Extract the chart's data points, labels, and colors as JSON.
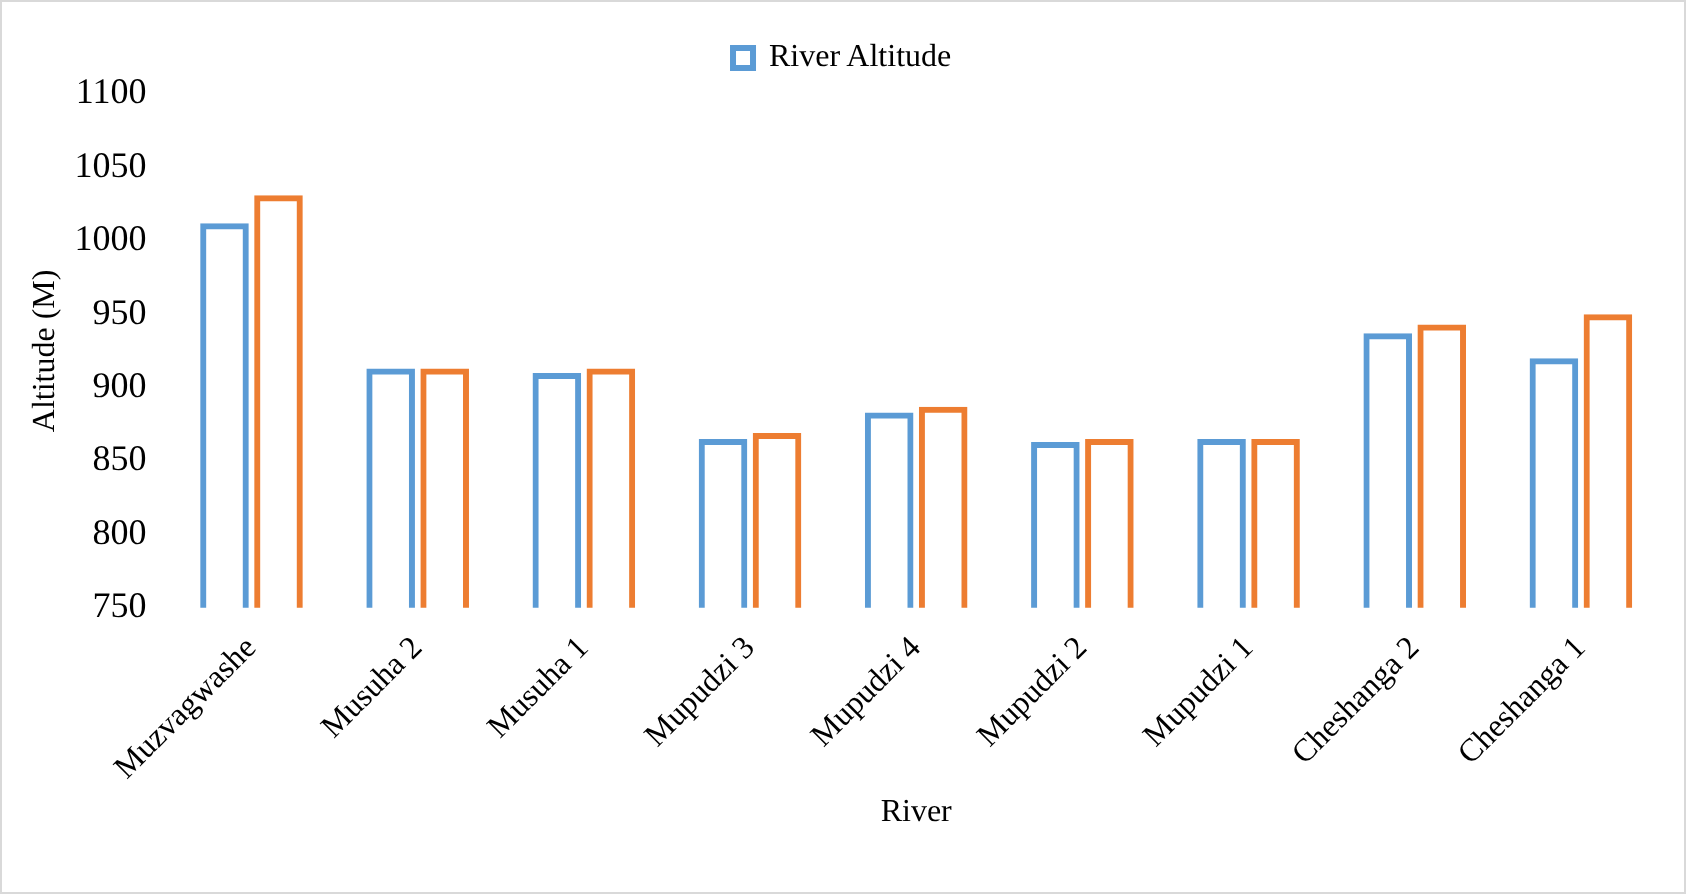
{
  "chart_data": {
    "type": "bar",
    "xlabel": "River",
    "ylabel": "Altitude (M)",
    "categories": [
      "Muzvagwashe",
      "Musuha 2",
      "Musuha 1",
      "Mupudzi 3",
      "Mupudzi 4",
      "Mupudzi 2",
      "Mupudzi 1",
      "Cheshanga 2",
      "Cheshanga 1"
    ],
    "series": [
      {
        "name": "River Altitude",
        "color": "#5b9bd5",
        "values": [
          1012,
          913,
          910,
          865,
          883,
          863,
          865,
          937,
          920
        ]
      },
      {
        "color": "#ed7d31",
        "values": [
          1031,
          913,
          913,
          869,
          887,
          865,
          865,
          943,
          950
        ]
      }
    ],
    "ylim": [
      750,
      1100
    ],
    "yticks": [
      750,
      800,
      850,
      900,
      950,
      1000,
      1050,
      1100
    ],
    "grid": false,
    "legend": "top"
  }
}
